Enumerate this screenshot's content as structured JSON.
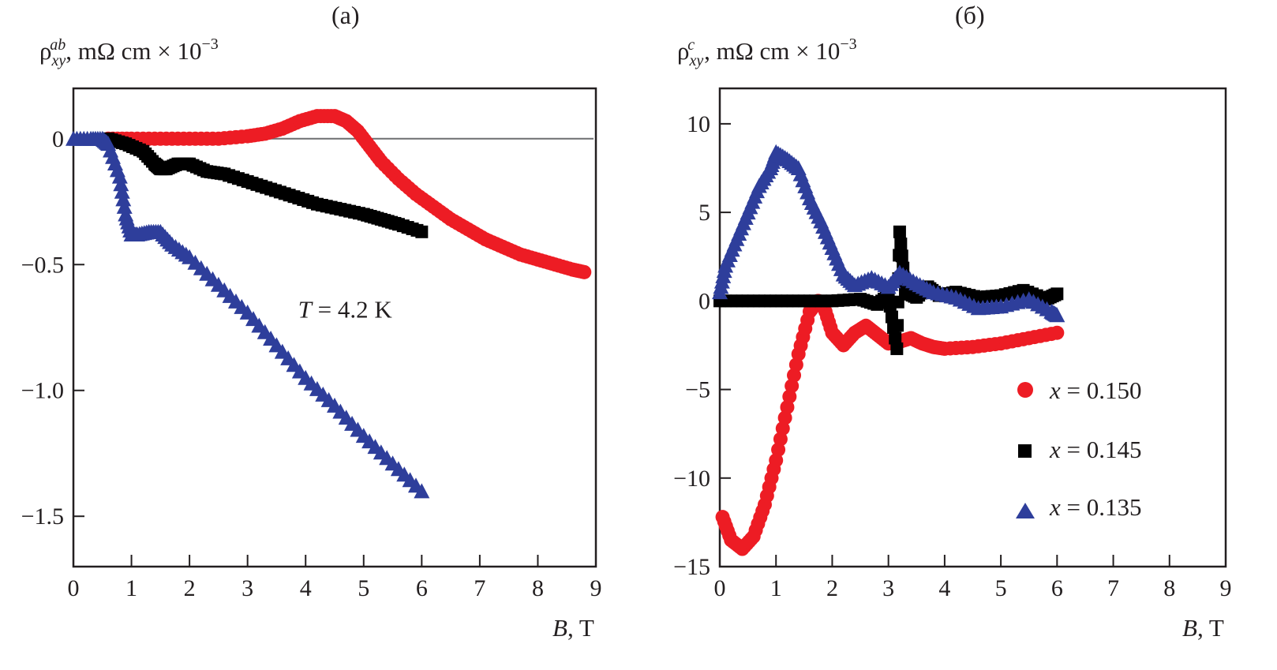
{
  "chart_data": [
    {
      "type": "scatter",
      "panel_label": "(a)",
      "ylabel": {
        "symbol": "ρ",
        "sub": "xy",
        "sup": "ab",
        "units": ", mΩ cm × 10",
        "exp": "−3"
      },
      "xlabel": {
        "var": "B",
        "units": ", T"
      },
      "xlim": [
        0,
        9
      ],
      "ylim": [
        -1.7,
        0.2
      ],
      "xticks": [
        0,
        1,
        2,
        3,
        4,
        5,
        6,
        7,
        8,
        9
      ],
      "xtick_labels": [
        "0",
        "1",
        "2",
        "3",
        "4",
        "5",
        "6",
        "7",
        "8",
        "9"
      ],
      "yticks": [
        0,
        -0.5,
        -1.0,
        -1.5
      ],
      "ytick_labels": [
        "0",
        "−0.5",
        "−1.0",
        "−1.5"
      ],
      "zero_line": true,
      "annotation": {
        "var": "T",
        "text": " = 4.2 K",
        "x": 4.55,
        "y": -0.68
      },
      "series": [
        {
          "name": "x = 0.150",
          "marker": "circle",
          "color": "#ed1c24",
          "x": [
            0.6,
            1.0,
            1.5,
            2.0,
            2.5,
            3.0,
            3.3,
            3.6,
            3.9,
            4.2,
            4.5,
            4.7,
            4.9,
            5.1,
            5.3,
            5.6,
            5.9,
            6.2,
            6.5,
            6.8,
            7.1,
            7.4,
            7.7,
            8.0,
            8.3,
            8.6,
            8.8
          ],
          "y": [
            0.0,
            0.0,
            0.0,
            0.0,
            0.0,
            0.01,
            0.02,
            0.04,
            0.07,
            0.09,
            0.09,
            0.07,
            0.03,
            -0.03,
            -0.09,
            -0.16,
            -0.22,
            -0.27,
            -0.32,
            -0.36,
            -0.4,
            -0.43,
            -0.46,
            -0.48,
            -0.5,
            -0.52,
            -0.53
          ]
        },
        {
          "name": "x = 0.145",
          "marker": "square",
          "color": "#000000",
          "x": [
            0.6,
            0.9,
            1.2,
            1.4,
            1.5,
            1.6,
            1.8,
            2.0,
            2.3,
            2.6,
            3.0,
            3.4,
            3.8,
            4.2,
            4.6,
            5.0,
            5.3,
            5.6,
            6.0
          ],
          "y": [
            0.0,
            -0.02,
            -0.05,
            -0.1,
            -0.12,
            -0.12,
            -0.1,
            -0.1,
            -0.13,
            -0.14,
            -0.17,
            -0.2,
            -0.23,
            -0.26,
            -0.28,
            -0.3,
            -0.32,
            -0.34,
            -0.37
          ]
        },
        {
          "name": "x = 0.135",
          "marker": "triangle",
          "color": "#2e3e9b",
          "x": [
            0.0,
            0.3,
            0.5,
            0.6,
            0.8,
            0.9,
            1.0,
            1.1,
            1.3,
            1.5,
            1.7,
            2.0,
            2.5,
            3.0,
            3.5,
            4.0,
            4.5,
            5.0,
            5.5,
            6.0
          ],
          "y": [
            0.0,
            0.0,
            0.0,
            -0.02,
            -0.15,
            -0.3,
            -0.38,
            -0.38,
            -0.37,
            -0.37,
            -0.42,
            -0.47,
            -0.58,
            -0.69,
            -0.82,
            -0.95,
            -1.06,
            -1.18,
            -1.29,
            -1.4
          ]
        }
      ]
    },
    {
      "type": "scatter",
      "panel_label": "(б)",
      "ylabel": {
        "symbol": "ρ",
        "sub": "xy",
        "sup": "c",
        "units": ", mΩ cm × 10",
        "exp": "−3"
      },
      "xlabel": {
        "var": "B",
        "units": ", T"
      },
      "xlim": [
        0,
        9
      ],
      "ylim": [
        -15,
        12
      ],
      "xticks": [
        0,
        1,
        2,
        3,
        4,
        5,
        6,
        7,
        8,
        9
      ],
      "xtick_labels": [
        "0",
        "1",
        "2",
        "3",
        "4",
        "5",
        "6",
        "7",
        "8",
        "9"
      ],
      "yticks": [
        10,
        5,
        0,
        -5,
        -10,
        -15
      ],
      "ytick_labels": [
        "10",
        "5",
        "0",
        "−5",
        "−10",
        "−15"
      ],
      "legend": {
        "position": "bottom-right",
        "entries": [
          {
            "var": "x",
            "text": " = 0.150",
            "marker": "circle",
            "color": "#ed1c24"
          },
          {
            "var": "x",
            "text": " = 0.145",
            "marker": "square",
            "color": "#000000"
          },
          {
            "var": "x",
            "text": " = 0.135",
            "marker": "triangle",
            "color": "#2e3e9b"
          }
        ]
      },
      "series": [
        {
          "name": "x = 0.150",
          "marker": "circle",
          "color": "#ed1c24",
          "x": [
            0.05,
            0.2,
            0.4,
            0.6,
            0.8,
            1.0,
            1.2,
            1.4,
            1.6,
            1.75,
            1.85,
            2.0,
            2.2,
            2.4,
            2.6,
            2.8,
            3.0,
            3.2,
            3.4,
            3.6,
            3.8,
            4.0,
            4.5,
            5.0,
            5.5,
            6.0
          ],
          "y": [
            -12.2,
            -13.5,
            -14.0,
            -13.3,
            -11.5,
            -9.0,
            -6.0,
            -3.0,
            -0.6,
            0.0,
            -0.3,
            -1.8,
            -2.5,
            -1.8,
            -1.4,
            -1.9,
            -2.4,
            -2.3,
            -2.1,
            -2.4,
            -2.6,
            -2.7,
            -2.6,
            -2.4,
            -2.1,
            -1.8
          ]
        },
        {
          "name": "x = 0.145",
          "marker": "square",
          "color": "#000000",
          "x": [
            0.0,
            0.5,
            1.0,
            1.5,
            2.0,
            2.5,
            2.8,
            3.0,
            3.15,
            3.2,
            3.3,
            3.5,
            3.7,
            3.9,
            4.2,
            4.6,
            5.0,
            5.4,
            5.8,
            6.0
          ],
          "y": [
            0.0,
            0.0,
            0.0,
            0.0,
            0.0,
            0.1,
            -0.2,
            0.3,
            -2.7,
            3.9,
            0.5,
            0.2,
            0.8,
            0.3,
            0.5,
            0.2,
            0.3,
            0.6,
            0.1,
            0.4
          ]
        },
        {
          "name": "x = 0.135",
          "marker": "triangle",
          "color": "#2e3e9b",
          "x": [
            0.0,
            0.1,
            0.3,
            0.5,
            0.7,
            0.9,
            1.0,
            1.2,
            1.4,
            1.6,
            1.8,
            2.0,
            2.2,
            2.4,
            2.7,
            3.0,
            3.2,
            3.5,
            3.8,
            4.2,
            4.6,
            5.0,
            5.5,
            5.9,
            6.0
          ],
          "y": [
            0.5,
            2.0,
            3.5,
            5.0,
            6.5,
            7.5,
            8.4,
            8.0,
            7.5,
            5.8,
            4.5,
            3.0,
            1.5,
            0.9,
            1.3,
            0.8,
            1.6,
            1.0,
            0.5,
            0.2,
            -0.4,
            -0.3,
            0.1,
            -0.6,
            -0.8
          ]
        }
      ]
    }
  ]
}
